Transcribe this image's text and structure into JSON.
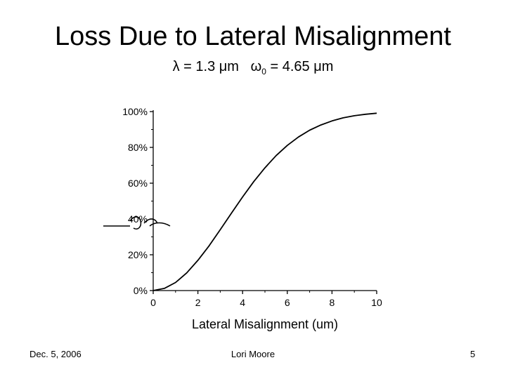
{
  "slide": {
    "title": "Loss Due to Lateral Misalignment",
    "subtitle": {
      "lambda": "λ = 1.3 μm",
      "omega_symbol": "ω",
      "omega_sub": "0",
      "omega_value": " = 4.65 μm"
    }
  },
  "footer": {
    "date": "Dec. 5, 2006",
    "author": "Lori Moore",
    "page_number": "5"
  },
  "chart_data": {
    "type": "line",
    "title": "",
    "xlabel": "Lateral Misalignment (um)",
    "ylabel": "",
    "xlim": [
      0,
      10
    ],
    "ylim": [
      0,
      100
    ],
    "x_ticks": [
      0,
      2,
      4,
      6,
      8,
      10
    ],
    "y_ticks": [
      0,
      20,
      40,
      60,
      80,
      100
    ],
    "y_tick_labels": [
      "0%",
      "20%",
      "40%",
      "60%",
      "80%",
      "100%"
    ],
    "grid": false,
    "series": [
      {
        "x": [
          0,
          0.5,
          1,
          1.5,
          2,
          2.5,
          3,
          3.5,
          4,
          4.5,
          5,
          5.5,
          6,
          6.5,
          7,
          7.5,
          8,
          8.5,
          9,
          9.5,
          10
        ],
        "y": [
          0,
          1.2,
          4.5,
          9.9,
          16.9,
          25.0,
          34.0,
          43.2,
          52.3,
          60.9,
          68.6,
          75.4,
          81.1,
          85.8,
          89.6,
          92.5,
          94.8,
          96.5,
          97.7,
          98.5,
          99.1
        ]
      }
    ]
  }
}
